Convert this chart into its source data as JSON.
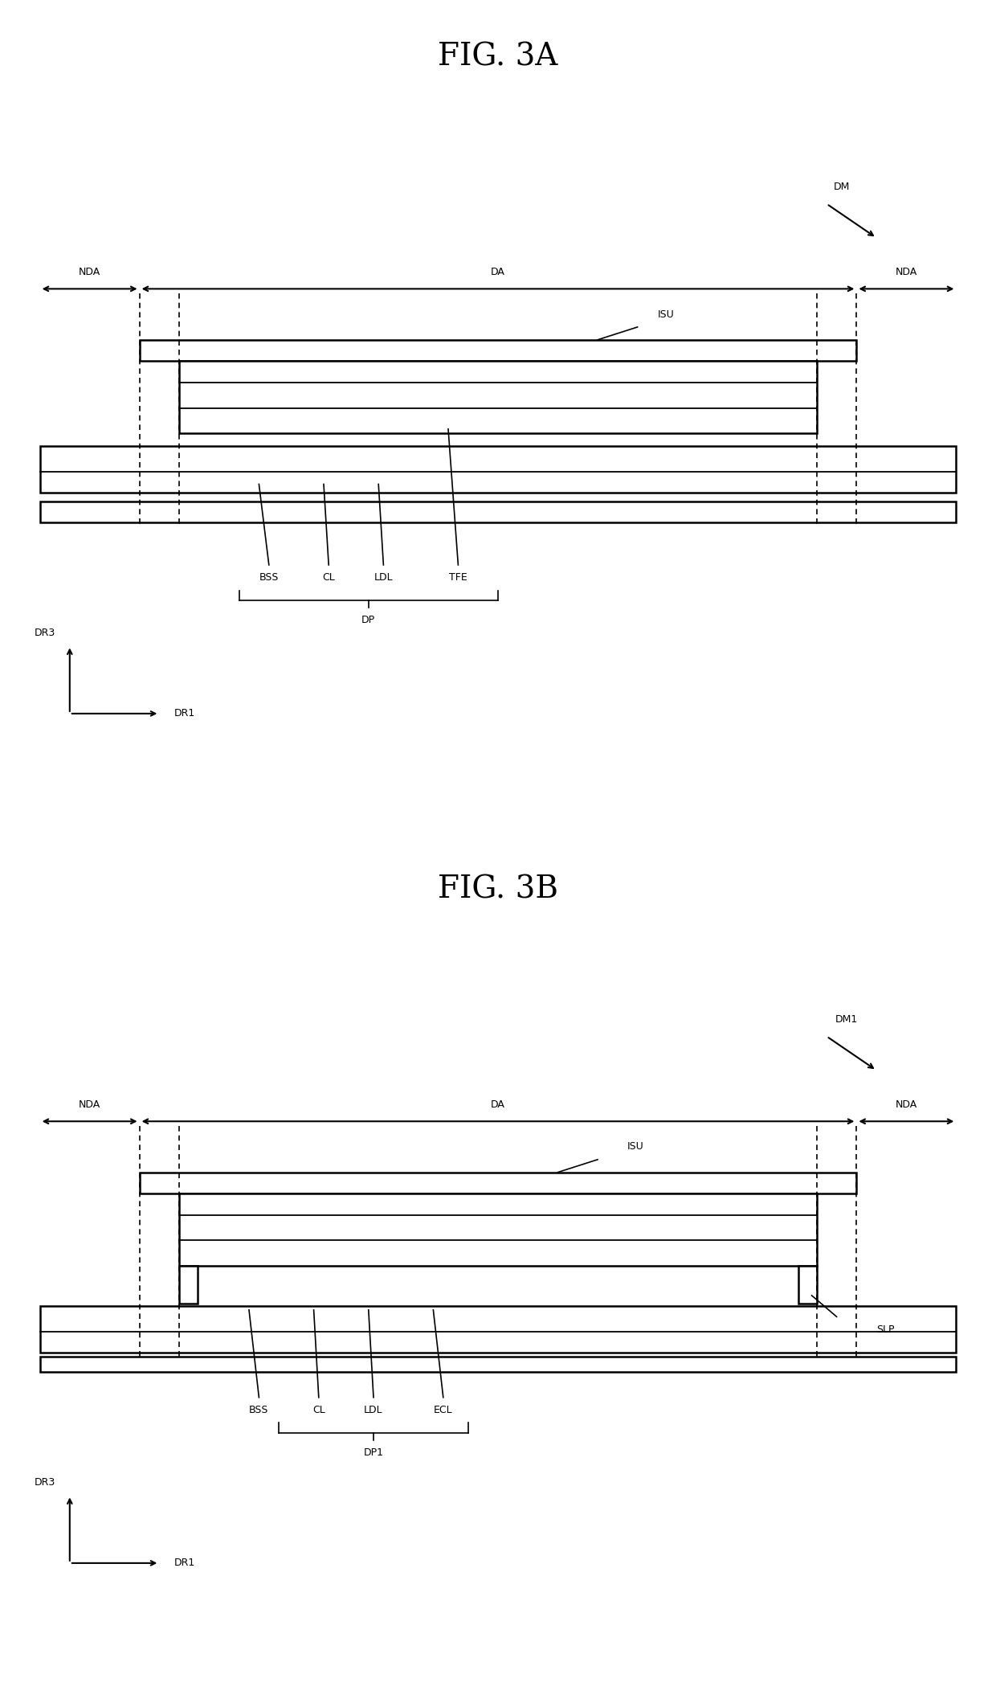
{
  "bg_color": "#ffffff",
  "line_color": "#000000",
  "figsize": [
    12.4,
    21.14
  ],
  "dpi": 100,
  "fig_a": {
    "title": "FIG. 3A",
    "dm_label": "DM",
    "da_label": "DA",
    "nda_label": "NDA",
    "isu_label": "ISU",
    "layer_labels": [
      "BSS",
      "CL",
      "LDL",
      "TFE"
    ],
    "dp_label": "DP",
    "dr3_label": "DR3",
    "dr1_label": "DR1"
  },
  "fig_b": {
    "title": "FIG. 3B",
    "dm_label": "DM1",
    "da_label": "DA",
    "nda_label": "NDA",
    "isu_label": "ISU",
    "layer_labels": [
      "BSS",
      "CL",
      "LDL",
      "ECL"
    ],
    "slp_label": "SLP",
    "dp_label": "DP1",
    "dr3_label": "DR3",
    "dr1_label": "DR1"
  }
}
